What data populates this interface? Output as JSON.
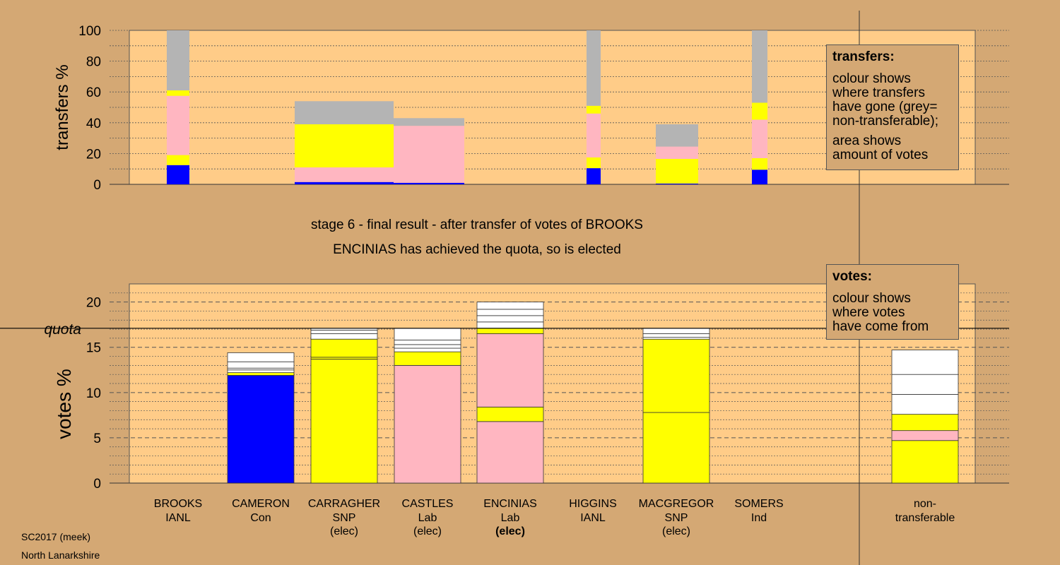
{
  "stage_title": "stage 6 - final result - after transfer of votes of BROOKS",
  "stage_subtitle": "ENCINIAS has achieved the quota, so is elected",
  "footer": {
    "line1": "SC2017 (meek)",
    "line2": "North Lanarkshire"
  },
  "legend_transfers": {
    "heading": "transfers:",
    "lines1": [
      "colour shows",
      "where transfers",
      "have gone (grey=",
      "non-transferable);"
    ],
    "lines2": [
      "area shows",
      "amount of votes"
    ]
  },
  "legend_votes": {
    "heading": "votes:",
    "lines": [
      "colour shows",
      "where votes",
      "have come from"
    ]
  },
  "candidates": [
    {
      "name": "BROOKS",
      "party": "IANL",
      "status": ""
    },
    {
      "name": "CAMERON",
      "party": "Con",
      "status": ""
    },
    {
      "name": "CARRAGHER",
      "party": "SNP",
      "status": "(elec)"
    },
    {
      "name": "CASTLES",
      "party": "Lab",
      "status": "(elec)"
    },
    {
      "name": "ENCINIAS",
      "party": "Lab",
      "status": "(elec)",
      "status_bold": true
    },
    {
      "name": "HIGGINS",
      "party": "IANL",
      "status": ""
    },
    {
      "name": "MACGREGOR",
      "party": "SNP",
      "status": "(elec)"
    },
    {
      "name": "SOMERS",
      "party": "Ind",
      "status": ""
    }
  ],
  "nontransferable_label": [
    "non-",
    "transferable"
  ],
  "colors": {
    "con": "#0000ff",
    "snp": "#ffff00",
    "lab": "#ffb6c1",
    "nontrans": "#b4b4b4",
    "plot_bg": "#ffcc88",
    "page_bg": "#d4a874"
  },
  "chart_data": [
    {
      "type": "bar",
      "name": "transfers",
      "ylabel": "transfers %",
      "ylim": [
        0,
        100
      ],
      "yticks": [
        0,
        20,
        40,
        60,
        80,
        100
      ],
      "bars": [
        {
          "candidate": "BROOKS",
          "segments": [
            {
              "color": "con",
              "from": 0,
              "to": 12.5
            },
            {
              "color": "snp",
              "from": 12.5,
              "to": 19
            },
            {
              "color": "lab",
              "from": 19,
              "to": 57.5
            },
            {
              "color": "snp",
              "from": 57.5,
              "to": 61
            },
            {
              "color": "nontrans",
              "from": 61,
              "to": 100
            }
          ]
        },
        {
          "candidate": "CARRAGHER",
          "segments": [
            {
              "color": "con",
              "from": 0,
              "to": 1.5
            },
            {
              "color": "lab",
              "from": 1.5,
              "to": 11
            },
            {
              "color": "snp",
              "from": 11,
              "to": 39
            },
            {
              "color": "nontrans",
              "from": 39,
              "to": 54
            }
          ]
        },
        {
          "candidate": "CASTLES",
          "segments": [
            {
              "color": "con",
              "from": 0,
              "to": 1
            },
            {
              "color": "lab",
              "from": 1,
              "to": 38
            },
            {
              "color": "nontrans",
              "from": 38,
              "to": 43
            }
          ]
        },
        {
          "candidate": "HIGGINS",
          "segments": [
            {
              "color": "con",
              "from": 0,
              "to": 10.5
            },
            {
              "color": "snp",
              "from": 10.5,
              "to": 17.5
            },
            {
              "color": "lab",
              "from": 17.5,
              "to": 46
            },
            {
              "color": "snp",
              "from": 46,
              "to": 51
            },
            {
              "color": "nontrans",
              "from": 51,
              "to": 100
            }
          ]
        },
        {
          "candidate": "MACGREGOR",
          "segments": [
            {
              "color": "con",
              "from": 0,
              "to": 0.5
            },
            {
              "color": "snp",
              "from": 0.5,
              "to": 16.5
            },
            {
              "color": "lab",
              "from": 16.5,
              "to": 24.5
            },
            {
              "color": "nontrans",
              "from": 24.5,
              "to": 39
            }
          ]
        },
        {
          "candidate": "SOMERS",
          "segments": [
            {
              "color": "con",
              "from": 0,
              "to": 9.5
            },
            {
              "color": "snp",
              "from": 9.5,
              "to": 17
            },
            {
              "color": "lab",
              "from": 17,
              "to": 42
            },
            {
              "color": "snp",
              "from": 42,
              "to": 53
            },
            {
              "color": "nontrans",
              "from": 53,
              "to": 100
            }
          ]
        }
      ]
    },
    {
      "type": "bar",
      "name": "votes",
      "ylabel": "votes %",
      "ylim": [
        0,
        22
      ],
      "yticks": [
        0,
        5,
        10,
        15,
        20
      ],
      "quota": 17.1,
      "quota_label": "quota",
      "bars": [
        {
          "candidate": "CAMERON",
          "segments": [
            {
              "color": "con",
              "from": 0,
              "to": 11.9
            },
            {
              "color": "snp",
              "from": 11.9,
              "to": 12.2
            },
            {
              "color": "white",
              "from": 12.2,
              "to": 12.5
            },
            {
              "color": "white",
              "from": 12.5,
              "to": 12.7
            },
            {
              "color": "white",
              "from": 12.7,
              "to": 13.4
            },
            {
              "color": "white",
              "from": 13.4,
              "to": 14.4
            }
          ]
        },
        {
          "candidate": "CARRAGHER",
          "segments": [
            {
              "color": "snp",
              "from": 0,
              "to": 13.7
            },
            {
              "color": "snp",
              "from": 13.7,
              "to": 13.9
            },
            {
              "color": "snp",
              "from": 13.9,
              "to": 15.9
            },
            {
              "color": "white",
              "from": 15.9,
              "to": 16.5
            },
            {
              "color": "white",
              "from": 16.5,
              "to": 16.9
            },
            {
              "color": "white",
              "from": 16.9,
              "to": 17.1
            }
          ]
        },
        {
          "candidate": "CASTLES",
          "segments": [
            {
              "color": "lab",
              "from": 0,
              "to": 13.0
            },
            {
              "color": "snp",
              "from": 13.0,
              "to": 14.5
            },
            {
              "color": "white",
              "from": 14.5,
              "to": 14.9
            },
            {
              "color": "white",
              "from": 14.9,
              "to": 15.3
            },
            {
              "color": "white",
              "from": 15.3,
              "to": 15.8
            },
            {
              "color": "white",
              "from": 15.8,
              "to": 17.1
            }
          ]
        },
        {
          "candidate": "ENCINIAS",
          "segments": [
            {
              "color": "lab",
              "from": 0,
              "to": 6.8
            },
            {
              "color": "snp",
              "from": 6.8,
              "to": 8.4
            },
            {
              "color": "lab",
              "from": 8.4,
              "to": 16.5
            },
            {
              "color": "snp",
              "from": 16.5,
              "to": 17.1
            },
            {
              "color": "white",
              "from": 17.1,
              "to": 17.8
            },
            {
              "color": "white",
              "from": 17.8,
              "to": 18.5
            },
            {
              "color": "white",
              "from": 18.5,
              "to": 19.2
            },
            {
              "color": "white",
              "from": 19.2,
              "to": 20.0
            }
          ]
        },
        {
          "candidate": "MACGREGOR",
          "segments": [
            {
              "color": "snp",
              "from": 0,
              "to": 7.8
            },
            {
              "color": "snp",
              "from": 7.8,
              "to": 15.9
            },
            {
              "color": "white",
              "from": 15.9,
              "to": 16.1
            },
            {
              "color": "white",
              "from": 16.1,
              "to": 16.5
            },
            {
              "color": "white",
              "from": 16.5,
              "to": 17.1
            }
          ]
        },
        {
          "candidate": "non-transferable",
          "segments": [
            {
              "color": "snp",
              "from": 0,
              "to": 4.7
            },
            {
              "color": "lab",
              "from": 4.7,
              "to": 5.8
            },
            {
              "color": "snp",
              "from": 5.8,
              "to": 7.6
            },
            {
              "color": "white",
              "from": 7.6,
              "to": 9.8
            },
            {
              "color": "white",
              "from": 9.8,
              "to": 12.0
            },
            {
              "color": "white",
              "from": 12.0,
              "to": 14.7
            }
          ]
        }
      ]
    }
  ]
}
